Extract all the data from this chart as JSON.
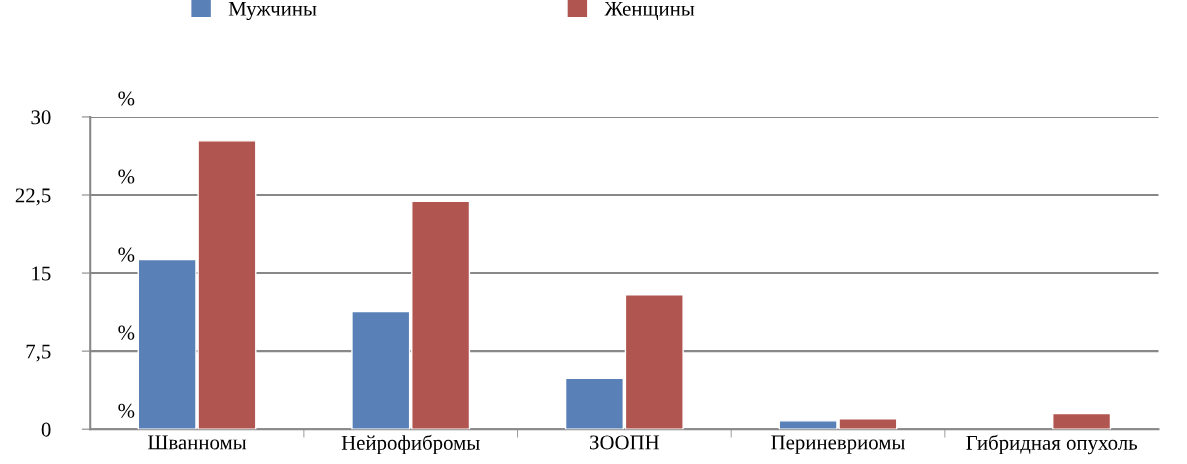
{
  "chart_data": {
    "type": "bar",
    "categories": [
      "Шванномы",
      "Нейрофибромы",
      "ЗООПН",
      "Периневриомы",
      "Гибридная опухоль"
    ],
    "series": [
      {
        "name": "Мужчины",
        "color": "#5a80b8",
        "values": [
          16.3,
          11.3,
          4.9,
          0.8,
          null
        ]
      },
      {
        "name": "Женщины",
        "color": "#b05550",
        "values": [
          27.7,
          21.9,
          12.9,
          1.0,
          1.5
        ]
      }
    ],
    "ylim": [
      0,
      30
    ],
    "yticks": [
      0,
      {
        "value": 7.5,
        "label": "7,5"
      },
      15,
      {
        "value": 22.5,
        "label": "22,5"
      },
      30
    ],
    "annotations": [
      "%",
      "%",
      "%",
      "%",
      "%"
    ],
    "grid": "y",
    "legend": "top"
  }
}
